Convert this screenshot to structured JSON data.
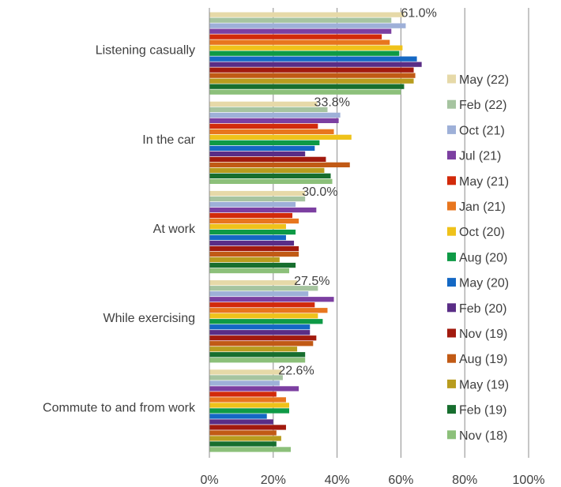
{
  "chart_data": {
    "type": "bar",
    "orientation": "horizontal",
    "categories": [
      "Listening casually",
      "In the car",
      "At work",
      "While exercising",
      "Commute to and from work"
    ],
    "series": [
      {
        "name": "May (22)",
        "color": "#E6D9A8",
        "values": [
          61.0,
          33.8,
          30.0,
          27.5,
          22.6
        ]
      },
      {
        "name": "Feb (22)",
        "color": "#A6C4A0",
        "values": [
          57,
          37,
          30,
          34,
          23
        ]
      },
      {
        "name": "Oct (21)",
        "color": "#9EB0D8",
        "values": [
          61.5,
          41,
          27,
          31,
          22
        ]
      },
      {
        "name": "Jul (21)",
        "color": "#7C3FA1",
        "values": [
          57,
          40.5,
          33.5,
          39,
          28
        ]
      },
      {
        "name": "May (21)",
        "color": "#D22A0A",
        "values": [
          54,
          34,
          26,
          33,
          21
        ]
      },
      {
        "name": "Jan (21)",
        "color": "#E8761E",
        "values": [
          56.5,
          39,
          28,
          37,
          24
        ]
      },
      {
        "name": "Oct (20)",
        "color": "#EFC21A",
        "values": [
          60.5,
          44.5,
          24,
          34,
          25
        ]
      },
      {
        "name": "Aug (20)",
        "color": "#0E9A46",
        "values": [
          59.5,
          34.5,
          27,
          35.5,
          25
        ]
      },
      {
        "name": "May (20)",
        "color": "#1468C4",
        "values": [
          65,
          33,
          24,
          31.5,
          18
        ]
      },
      {
        "name": "Feb (20)",
        "color": "#5A2D86",
        "values": [
          66.5,
          30,
          26.5,
          31.5,
          20
        ]
      },
      {
        "name": "Nov (19)",
        "color": "#A21A0E",
        "values": [
          64,
          36.5,
          28,
          33.5,
          24
        ]
      },
      {
        "name": "Aug (19)",
        "color": "#C15A15",
        "values": [
          64.5,
          44,
          28,
          32.5,
          21
        ]
      },
      {
        "name": "May (19)",
        "color": "#B89C1E",
        "values": [
          64,
          36,
          22,
          27.5,
          22.5
        ]
      },
      {
        "name": "Feb (19)",
        "color": "#176E2E",
        "values": [
          61,
          38,
          27,
          30,
          21
        ]
      },
      {
        "name": "Nov (18)",
        "color": "#8CC07A",
        "values": [
          60,
          38.5,
          25,
          30,
          25.5
        ]
      }
    ],
    "data_labels": [
      "61.0%",
      "33.8%",
      "30.0%",
      "27.5%",
      "22.6%"
    ],
    "x_ticks": [
      "0%",
      "20%",
      "40%",
      "60%",
      "80%",
      "100%"
    ],
    "xlim": [
      0,
      100
    ],
    "grid": "vertical",
    "legend_position": "right"
  }
}
